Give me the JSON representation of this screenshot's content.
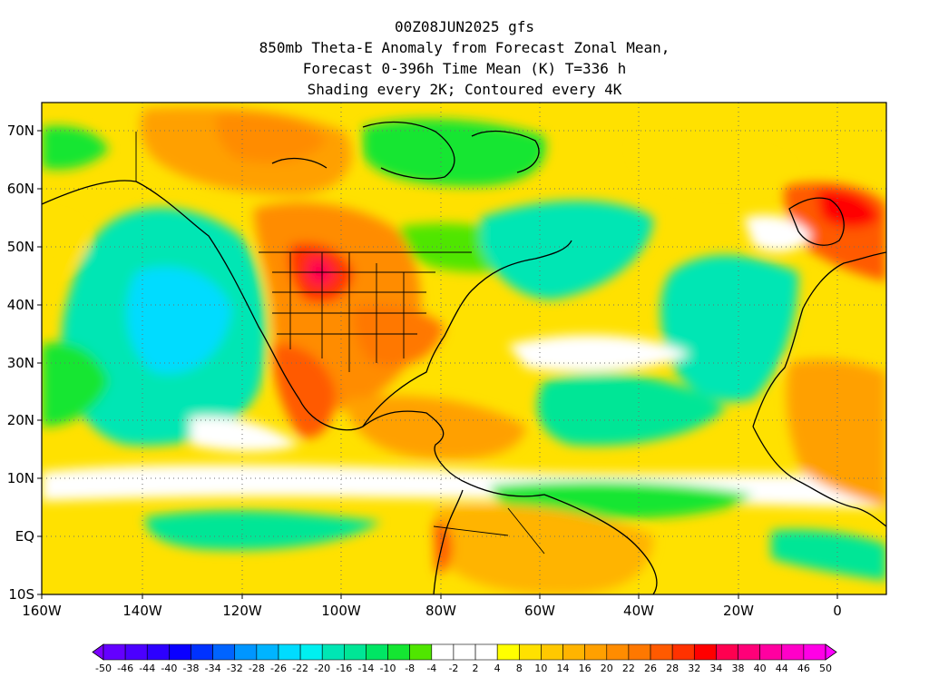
{
  "title": {
    "line1": "00Z08JUN2025 gfs",
    "line2": "850mb Theta-E Anomaly from Forecast Zonal Mean,",
    "line3": "Forecast 0-396h Time Mean (K) T=336 h",
    "line4": "Shading every 2K; Contoured every 4K"
  },
  "map": {
    "projection": "lat-lon",
    "lon_range": [
      -160,
      10
    ],
    "lat_range": [
      -10,
      75
    ],
    "grid": "dotted",
    "lat_ticks": [
      "70N",
      "60N",
      "50N",
      "40N",
      "30N",
      "20N",
      "10N",
      "EQ",
      "10S"
    ],
    "lon_ticks": [
      "160W",
      "140W",
      "120W",
      "100W",
      "80W",
      "60W",
      "40W",
      "20W",
      "0"
    ]
  },
  "colorbar": {
    "labels": [
      "-50",
      "-46",
      "-44",
      "-40",
      "-38",
      "-34",
      "-32",
      "-28",
      "-26",
      "-22",
      "-20",
      "-16",
      "-14",
      "-10",
      "-8",
      "-4",
      "-2",
      "2",
      "4",
      "8",
      "10",
      "14",
      "16",
      "20",
      "22",
      "26",
      "28",
      "32",
      "34",
      "38",
      "40",
      "44",
      "46",
      "50"
    ],
    "colors": [
      "#7b00ff",
      "#6400ff",
      "#4b00ff",
      "#2d00ff",
      "#0a00ff",
      "#0032ff",
      "#0064ff",
      "#0096ff",
      "#00b4ff",
      "#00dcff",
      "#00f0f0",
      "#00e6b4",
      "#00e696",
      "#00e664",
      "#14e632",
      "#50e600",
      "#ffffff",
      "#ffffff",
      "#ffffff",
      "#ffff00",
      "#ffe100",
      "#ffc800",
      "#ffb400",
      "#ffa000",
      "#ff8c00",
      "#ff7800",
      "#ff5a00",
      "#ff3200",
      "#ff0000",
      "#ff0050",
      "#ff0078",
      "#ff00a0",
      "#ff00c8",
      "#ff00e6",
      "#ff00ff"
    ]
  }
}
